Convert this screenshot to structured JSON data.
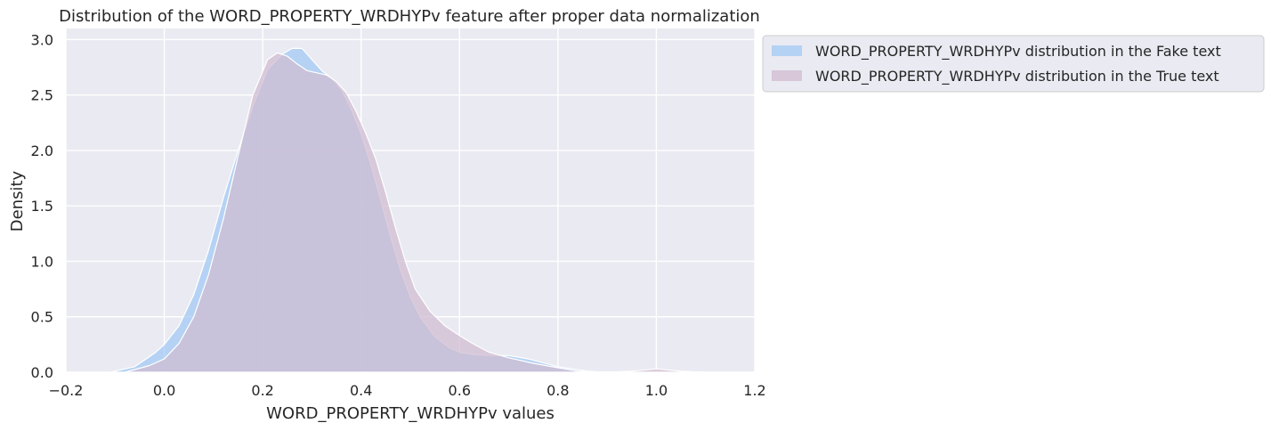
{
  "chart_data": {
    "type": "area",
    "title": "Distribution of the WORD_PROPERTY_WRDHYPv feature after proper data normalization",
    "xlabel": "WORD_PROPERTY_WRDHYPv values",
    "ylabel": "Density",
    "xlim": [
      -0.2,
      1.2
    ],
    "ylim": [
      0,
      3.1
    ],
    "xticks": [
      -0.2,
      0.0,
      0.2,
      0.4,
      0.6,
      0.8,
      1.0,
      1.2
    ],
    "xtick_labels": [
      "−0.2",
      "0.0",
      "0.2",
      "0.4",
      "0.6",
      "0.8",
      "1.0",
      "1.2"
    ],
    "yticks": [
      0.0,
      0.5,
      1.0,
      1.5,
      2.0,
      2.5,
      3.0
    ],
    "ytick_labels": [
      "0.0",
      "0.5",
      "1.0",
      "1.5",
      "2.0",
      "2.5",
      "3.0"
    ],
    "grid": true,
    "legend_position": "outside upper right",
    "series": [
      {
        "name": "WORD_PROPERTY_WRDHYPv distribution in the Fake text",
        "color": "#a1c9f4",
        "x": [
          -0.11,
          -0.06,
          -0.02,
          0.0,
          0.03,
          0.06,
          0.09,
          0.12,
          0.15,
          0.18,
          0.21,
          0.24,
          0.26,
          0.28,
          0.3,
          0.32,
          0.34,
          0.36,
          0.38,
          0.4,
          0.42,
          0.44,
          0.46,
          0.48,
          0.5,
          0.52,
          0.55,
          0.58,
          0.6,
          0.63,
          0.66,
          0.7,
          0.74,
          0.8,
          0.86,
          0.9
        ],
        "y": [
          0.0,
          0.05,
          0.17,
          0.25,
          0.42,
          0.7,
          1.1,
          1.57,
          2.0,
          2.4,
          2.73,
          2.87,
          2.92,
          2.92,
          2.82,
          2.72,
          2.65,
          2.55,
          2.37,
          2.15,
          1.87,
          1.55,
          1.22,
          0.92,
          0.68,
          0.5,
          0.32,
          0.22,
          0.18,
          0.16,
          0.15,
          0.15,
          0.12,
          0.05,
          0.01,
          0.0
        ]
      },
      {
        "name": "WORD_PROPERTY_WRDHYPv distribution in the True text",
        "color": "#d0bbd0",
        "x": [
          -0.08,
          -0.03,
          0.0,
          0.03,
          0.06,
          0.09,
          0.12,
          0.15,
          0.18,
          0.21,
          0.23,
          0.25,
          0.27,
          0.29,
          0.31,
          0.33,
          0.35,
          0.37,
          0.39,
          0.41,
          0.43,
          0.45,
          0.47,
          0.49,
          0.51,
          0.54,
          0.57,
          0.6,
          0.63,
          0.66,
          0.7,
          0.75,
          0.8,
          0.84,
          0.9,
          0.95,
          1.0,
          1.05,
          1.1
        ],
        "y": [
          0.0,
          0.06,
          0.12,
          0.26,
          0.5,
          0.88,
          1.38,
          1.95,
          2.5,
          2.82,
          2.88,
          2.85,
          2.78,
          2.72,
          2.7,
          2.68,
          2.62,
          2.52,
          2.35,
          2.15,
          1.92,
          1.62,
          1.3,
          1.0,
          0.75,
          0.55,
          0.42,
          0.33,
          0.25,
          0.18,
          0.13,
          0.08,
          0.04,
          0.01,
          0.0,
          0.01,
          0.03,
          0.01,
          0.0
        ]
      }
    ]
  }
}
